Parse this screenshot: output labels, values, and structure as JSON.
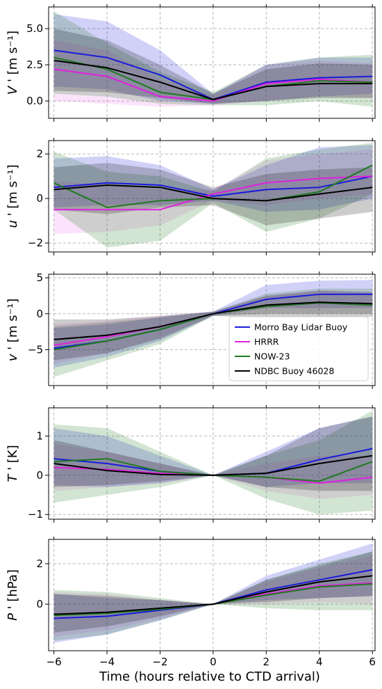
{
  "xlabel": "Time (hours relative to CTD arrival)",
  "legend": {
    "placement": "lower-right of third panel",
    "entries": [
      {
        "name": "Morro Bay Lidar Buoy",
        "color": "#1a1adb"
      },
      {
        "name": "HRRR",
        "color": "#e020e0"
      },
      {
        "name": "NOW-23",
        "color": "#1f7a1f"
      },
      {
        "name": "NDBC Buoy 46028",
        "color": "#000000"
      }
    ]
  },
  "colors": {
    "Morro Bay Lidar Buoy": "#1a1adb",
    "HRRR": "#e020e0",
    "NOW-23": "#1f7a1f",
    "NDBC Buoy 46028": "#000000"
  },
  "chart_data": [
    {
      "type": "line",
      "ylabel_main": "V",
      "ylabel_unit": "[m s⁻¹]",
      "xlim": [
        -6.2,
        6.1
      ],
      "ylim": [
        -1.2,
        6.5
      ],
      "xticks": [
        -6,
        -4,
        -2,
        0,
        2,
        4,
        6
      ],
      "yticks": [
        0.0,
        2.5,
        5.0
      ],
      "ytick_labels": [
        "0.0",
        "2.5",
        "5.0"
      ],
      "grid": true,
      "x": [
        -6,
        -4,
        -2,
        0,
        2,
        4,
        6
      ],
      "series": [
        {
          "name": "Morro Bay Lidar Buoy",
          "values": [
            3.5,
            3.0,
            1.8,
            0.1,
            1.3,
            1.6,
            1.7
          ],
          "lower": [
            1.0,
            0.8,
            0.0,
            -0.2,
            0.0,
            0.3,
            0.5
          ],
          "upper": [
            6.0,
            5.5,
            3.5,
            0.5,
            2.5,
            3.0,
            3.0
          ]
        },
        {
          "name": "HRRR",
          "values": [
            2.2,
            1.7,
            0.3,
            0.0,
            1.2,
            1.5,
            1.3
          ],
          "lower": [
            0.0,
            -0.2,
            -0.4,
            -0.3,
            0.0,
            0.3,
            0.2
          ],
          "upper": [
            4.2,
            3.5,
            1.5,
            0.4,
            2.5,
            2.8,
            2.6
          ]
        },
        {
          "name": "NOW-23",
          "values": [
            3.0,
            2.2,
            0.6,
            0.1,
            1.0,
            1.4,
            1.3
          ],
          "lower": [
            0.5,
            0.3,
            -0.2,
            -0.3,
            -0.3,
            0.0,
            -0.4
          ],
          "upper": [
            6.2,
            4.0,
            2.0,
            0.6,
            2.5,
            3.0,
            3.2
          ]
        },
        {
          "name": "NDBC Buoy 46028",
          "values": [
            2.8,
            2.3,
            1.3,
            0.1,
            1.0,
            1.2,
            1.2
          ],
          "lower": [
            0.7,
            0.6,
            0.2,
            -0.2,
            0.0,
            0.2,
            0.2
          ],
          "upper": [
            5.0,
            4.2,
            2.5,
            0.5,
            2.2,
            2.6,
            2.5
          ]
        }
      ]
    },
    {
      "type": "line",
      "ylabel_main": "u",
      "ylabel_unit": "[m s⁻¹]",
      "xlim": [
        -6.2,
        6.1
      ],
      "ylim": [
        -2.4,
        2.6
      ],
      "xticks": [
        -6,
        -4,
        -2,
        0,
        2,
        4,
        6
      ],
      "yticks": [
        -2,
        0,
        2
      ],
      "ytick_labels": [
        "−2",
        "0",
        "2"
      ],
      "grid": true,
      "x": [
        -6,
        -4,
        -2,
        0,
        2,
        4,
        6
      ],
      "series": [
        {
          "name": "Morro Bay Lidar Buoy",
          "values": [
            0.5,
            0.7,
            0.6,
            0.1,
            0.4,
            0.5,
            1.0
          ],
          "lower": [
            -0.4,
            -0.3,
            -0.3,
            -0.1,
            -0.6,
            -0.5,
            0.0
          ],
          "upper": [
            1.8,
            1.9,
            1.5,
            0.4,
            1.5,
            2.3,
            2.4
          ]
        },
        {
          "name": "HRRR",
          "values": [
            -0.5,
            -0.5,
            -0.5,
            0.2,
            0.7,
            0.9,
            1.0
          ],
          "lower": [
            -1.6,
            -1.5,
            -1.2,
            -0.1,
            -0.3,
            0.0,
            0.2
          ],
          "upper": [
            0.8,
            0.6,
            0.4,
            0.4,
            1.7,
            2.0,
            2.2
          ]
        },
        {
          "name": "NOW-23",
          "values": [
            0.7,
            -0.4,
            -0.1,
            0.0,
            -0.1,
            0.3,
            1.5
          ],
          "lower": [
            -0.5,
            -2.2,
            -1.9,
            -0.2,
            -1.5,
            -0.9,
            0.2
          ],
          "upper": [
            2.1,
            1.2,
            1.0,
            0.3,
            1.8,
            2.2,
            2.5
          ]
        },
        {
          "name": "NDBC Buoy 46028",
          "values": [
            0.4,
            0.6,
            0.5,
            0.0,
            -0.1,
            0.2,
            0.5
          ],
          "lower": [
            -0.5,
            -0.7,
            -0.4,
            -0.3,
            -1.2,
            -0.9,
            -0.6
          ],
          "upper": [
            1.4,
            1.6,
            1.3,
            0.5,
            1.1,
            1.3,
            1.4
          ]
        }
      ]
    },
    {
      "type": "line",
      "ylabel_main": "v",
      "ylabel_unit": "[m s⁻¹]",
      "xlim": [
        -6.2,
        6.1
      ],
      "ylim": [
        -10.0,
        5.5
      ],
      "xticks": [
        -6,
        -4,
        -2,
        0,
        2,
        4,
        6
      ],
      "yticks": [
        -5,
        0,
        5
      ],
      "ytick_labels": [
        "−5",
        "0",
        "5"
      ],
      "grid": true,
      "x": [
        -6,
        -4,
        -2,
        0,
        2,
        4,
        6
      ],
      "series": [
        {
          "name": "Morro Bay Lidar Buoy",
          "values": [
            -4.8,
            -3.8,
            -2.2,
            0.0,
            2.0,
            2.7,
            2.7
          ],
          "lower": [
            -7.5,
            -6.0,
            -3.8,
            -0.3,
            0.8,
            0.8,
            0.8
          ],
          "upper": [
            -2.0,
            -1.5,
            -0.5,
            0.3,
            4.0,
            4.6,
            4.7
          ]
        },
        {
          "name": "HRRR",
          "values": [
            -4.4,
            -3.2,
            -1.8,
            0.0,
            1.0,
            1.5,
            1.2
          ],
          "lower": [
            -7.0,
            -5.5,
            -3.3,
            -0.3,
            -0.5,
            -0.5,
            -0.3
          ],
          "upper": [
            -1.5,
            -1.0,
            -0.3,
            0.3,
            2.5,
            3.3,
            3.0
          ]
        },
        {
          "name": "NOW-23",
          "values": [
            -5.0,
            -3.8,
            -2.2,
            0.0,
            1.0,
            1.5,
            1.2
          ],
          "lower": [
            -8.8,
            -6.5,
            -4.2,
            -0.3,
            -0.6,
            -0.5,
            -0.5
          ],
          "upper": [
            -1.8,
            -1.2,
            -0.5,
            0.3,
            2.8,
            3.5,
            3.5
          ]
        },
        {
          "name": "NDBC Buoy 46028",
          "values": [
            -3.6,
            -3.0,
            -1.8,
            0.0,
            1.2,
            1.6,
            1.4
          ],
          "lower": [
            -6.5,
            -5.5,
            -3.5,
            -0.3,
            0.0,
            0.0,
            0.0
          ],
          "upper": [
            -0.8,
            -0.8,
            -0.3,
            0.3,
            2.5,
            3.2,
            3.0
          ]
        }
      ]
    },
    {
      "type": "line",
      "ylabel_main": "T",
      "ylabel_unit": "[K]",
      "xlim": [
        -6.2,
        6.1
      ],
      "ylim": [
        -1.12,
        1.72
      ],
      "xticks": [
        -6,
        -4,
        -2,
        0,
        2,
        4,
        6
      ],
      "yticks": [
        -1,
        0,
        1
      ],
      "ytick_labels": [
        "−1",
        "0",
        "1"
      ],
      "grid": true,
      "x": [
        -6,
        -4,
        -2,
        0,
        2,
        4,
        6
      ],
      "series": [
        {
          "name": "Morro Bay Lidar Buoy",
          "values": [
            0.42,
            0.3,
            0.1,
            0.0,
            0.05,
            0.4,
            0.68
          ],
          "lower": [
            -0.25,
            -0.3,
            -0.2,
            0.0,
            -0.3,
            -0.2,
            -0.2
          ],
          "upper": [
            1.2,
            1.0,
            0.5,
            0.0,
            0.6,
            1.2,
            1.5
          ]
        },
        {
          "name": "HRRR",
          "values": [
            0.2,
            0.15,
            0.05,
            0.0,
            -0.05,
            -0.2,
            -0.05
          ],
          "lower": [
            -0.4,
            -0.3,
            -0.2,
            0.0,
            -0.4,
            -0.6,
            -0.5
          ],
          "upper": [
            0.8,
            0.6,
            0.3,
            0.0,
            0.3,
            0.5,
            0.5
          ]
        },
        {
          "name": "NOW-23",
          "values": [
            0.35,
            0.42,
            0.1,
            0.0,
            -0.05,
            -0.15,
            0.35
          ],
          "lower": [
            -0.7,
            -0.5,
            -0.3,
            0.0,
            -0.6,
            -1.0,
            -0.9
          ],
          "upper": [
            1.3,
            1.2,
            0.6,
            0.0,
            0.5,
            0.9,
            1.65
          ]
        },
        {
          "name": "NDBC Buoy 46028",
          "values": [
            0.3,
            0.12,
            0.02,
            0.0,
            0.05,
            0.3,
            0.5
          ],
          "lower": [
            -0.3,
            -0.25,
            -0.15,
            0.0,
            -0.3,
            -0.4,
            -0.4
          ],
          "upper": [
            0.9,
            0.6,
            0.3,
            0.0,
            0.5,
            1.2,
            1.5
          ]
        }
      ]
    },
    {
      "type": "line",
      "ylabel_main": "P",
      "ylabel_unit": "[hPa]",
      "xlim": [
        -6.2,
        6.1
      ],
      "ylim": [
        -2.3,
        3.2
      ],
      "xticks": [
        -6,
        -4,
        -2,
        0,
        2,
        4,
        6
      ],
      "yticks": [
        0,
        2
      ],
      "ytick_labels": [
        "0",
        "2"
      ],
      "grid": true,
      "x": [
        -6,
        -4,
        -2,
        0,
        2,
        4,
        6
      ],
      "series": [
        {
          "name": "Morro Bay Lidar Buoy",
          "values": [
            -0.7,
            -0.6,
            -0.3,
            0.0,
            0.7,
            1.2,
            1.7
          ],
          "lower": [
            -1.9,
            -1.5,
            -0.8,
            0.0,
            0.2,
            0.3,
            0.4
          ],
          "upper": [
            0.5,
            0.3,
            0.2,
            0.0,
            1.4,
            2.2,
            3.0
          ]
        },
        {
          "name": "HRRR",
          "values": [
            -0.5,
            -0.4,
            -0.25,
            0.0,
            0.5,
            0.9,
            1.05
          ],
          "lower": [
            -1.6,
            -1.3,
            -0.7,
            0.0,
            0.0,
            0.1,
            0.0
          ],
          "upper": [
            0.6,
            0.5,
            0.2,
            0.0,
            1.1,
            1.8,
            2.4
          ]
        },
        {
          "name": "NOW-23",
          "values": [
            -0.55,
            -0.45,
            -0.25,
            0.0,
            0.45,
            0.85,
            1.0
          ],
          "lower": [
            -1.8,
            -1.5,
            -0.8,
            0.0,
            -0.2,
            -0.3,
            -0.3
          ],
          "upper": [
            0.7,
            0.6,
            0.3,
            0.0,
            1.2,
            2.0,
            2.6
          ]
        },
        {
          "name": "NDBC Buoy 46028",
          "values": [
            -0.5,
            -0.4,
            -0.2,
            0.0,
            0.6,
            1.1,
            1.4
          ],
          "lower": [
            -1.4,
            -1.1,
            -0.6,
            0.0,
            0.1,
            0.3,
            0.4
          ],
          "upper": [
            0.5,
            0.4,
            0.2,
            0.0,
            1.2,
            1.9,
            2.6
          ]
        }
      ]
    }
  ]
}
